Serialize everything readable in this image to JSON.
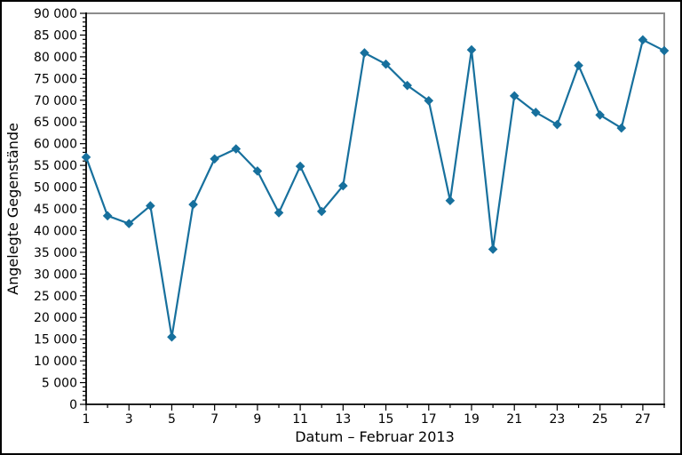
{
  "figure": {
    "background": "#ffffff",
    "border_color": "#000000"
  },
  "chart_data": {
    "type": "line",
    "title": "",
    "xlabel": "Datum – Februar 2013",
    "ylabel": "Angelegte Gegenstände",
    "x": [
      1,
      2,
      3,
      4,
      5,
      6,
      7,
      8,
      9,
      10,
      11,
      12,
      13,
      14,
      15,
      16,
      17,
      18,
      19,
      20,
      21,
      22,
      23,
      24,
      25,
      26,
      27,
      28
    ],
    "values": [
      56900,
      43400,
      41600,
      45700,
      15500,
      46000,
      56500,
      58800,
      53700,
      44100,
      54800,
      44400,
      50300,
      80900,
      78300,
      73400,
      69900,
      46900,
      81600,
      35700,
      71000,
      67200,
      64400,
      78000,
      66600,
      63600,
      83900,
      81400
    ],
    "xlim": [
      1,
      28
    ],
    "ylim": [
      0,
      90000
    ],
    "y_major_step": 5000,
    "y_minor_step": 1000,
    "x_major_ticks": [
      1,
      3,
      5,
      7,
      9,
      11,
      13,
      15,
      17,
      19,
      21,
      23,
      25,
      27
    ],
    "x_minor_ticks": [
      2,
      4,
      6,
      8,
      10,
      12,
      14,
      16,
      18,
      20,
      22,
      24,
      26,
      28
    ],
    "y_tick_labels": [
      "0",
      "5 000",
      "10 000",
      "15 000",
      "20 000",
      "25 000",
      "30 000",
      "35 000",
      "40 000",
      "45 000",
      "50 000",
      "55 000",
      "60 000",
      "65 000",
      "70 000",
      "75 000",
      "80 000",
      "85 000",
      "90 000"
    ],
    "x_tick_labels": [
      "1",
      "3",
      "5",
      "7",
      "9",
      "11",
      "13",
      "15",
      "17",
      "19",
      "21",
      "23",
      "25",
      "27"
    ],
    "grid": false,
    "legend": null,
    "marker": "diamond",
    "series_color": "#17709d",
    "axis_color": "#000000",
    "spine_gray_color": "#8c8c8c"
  }
}
